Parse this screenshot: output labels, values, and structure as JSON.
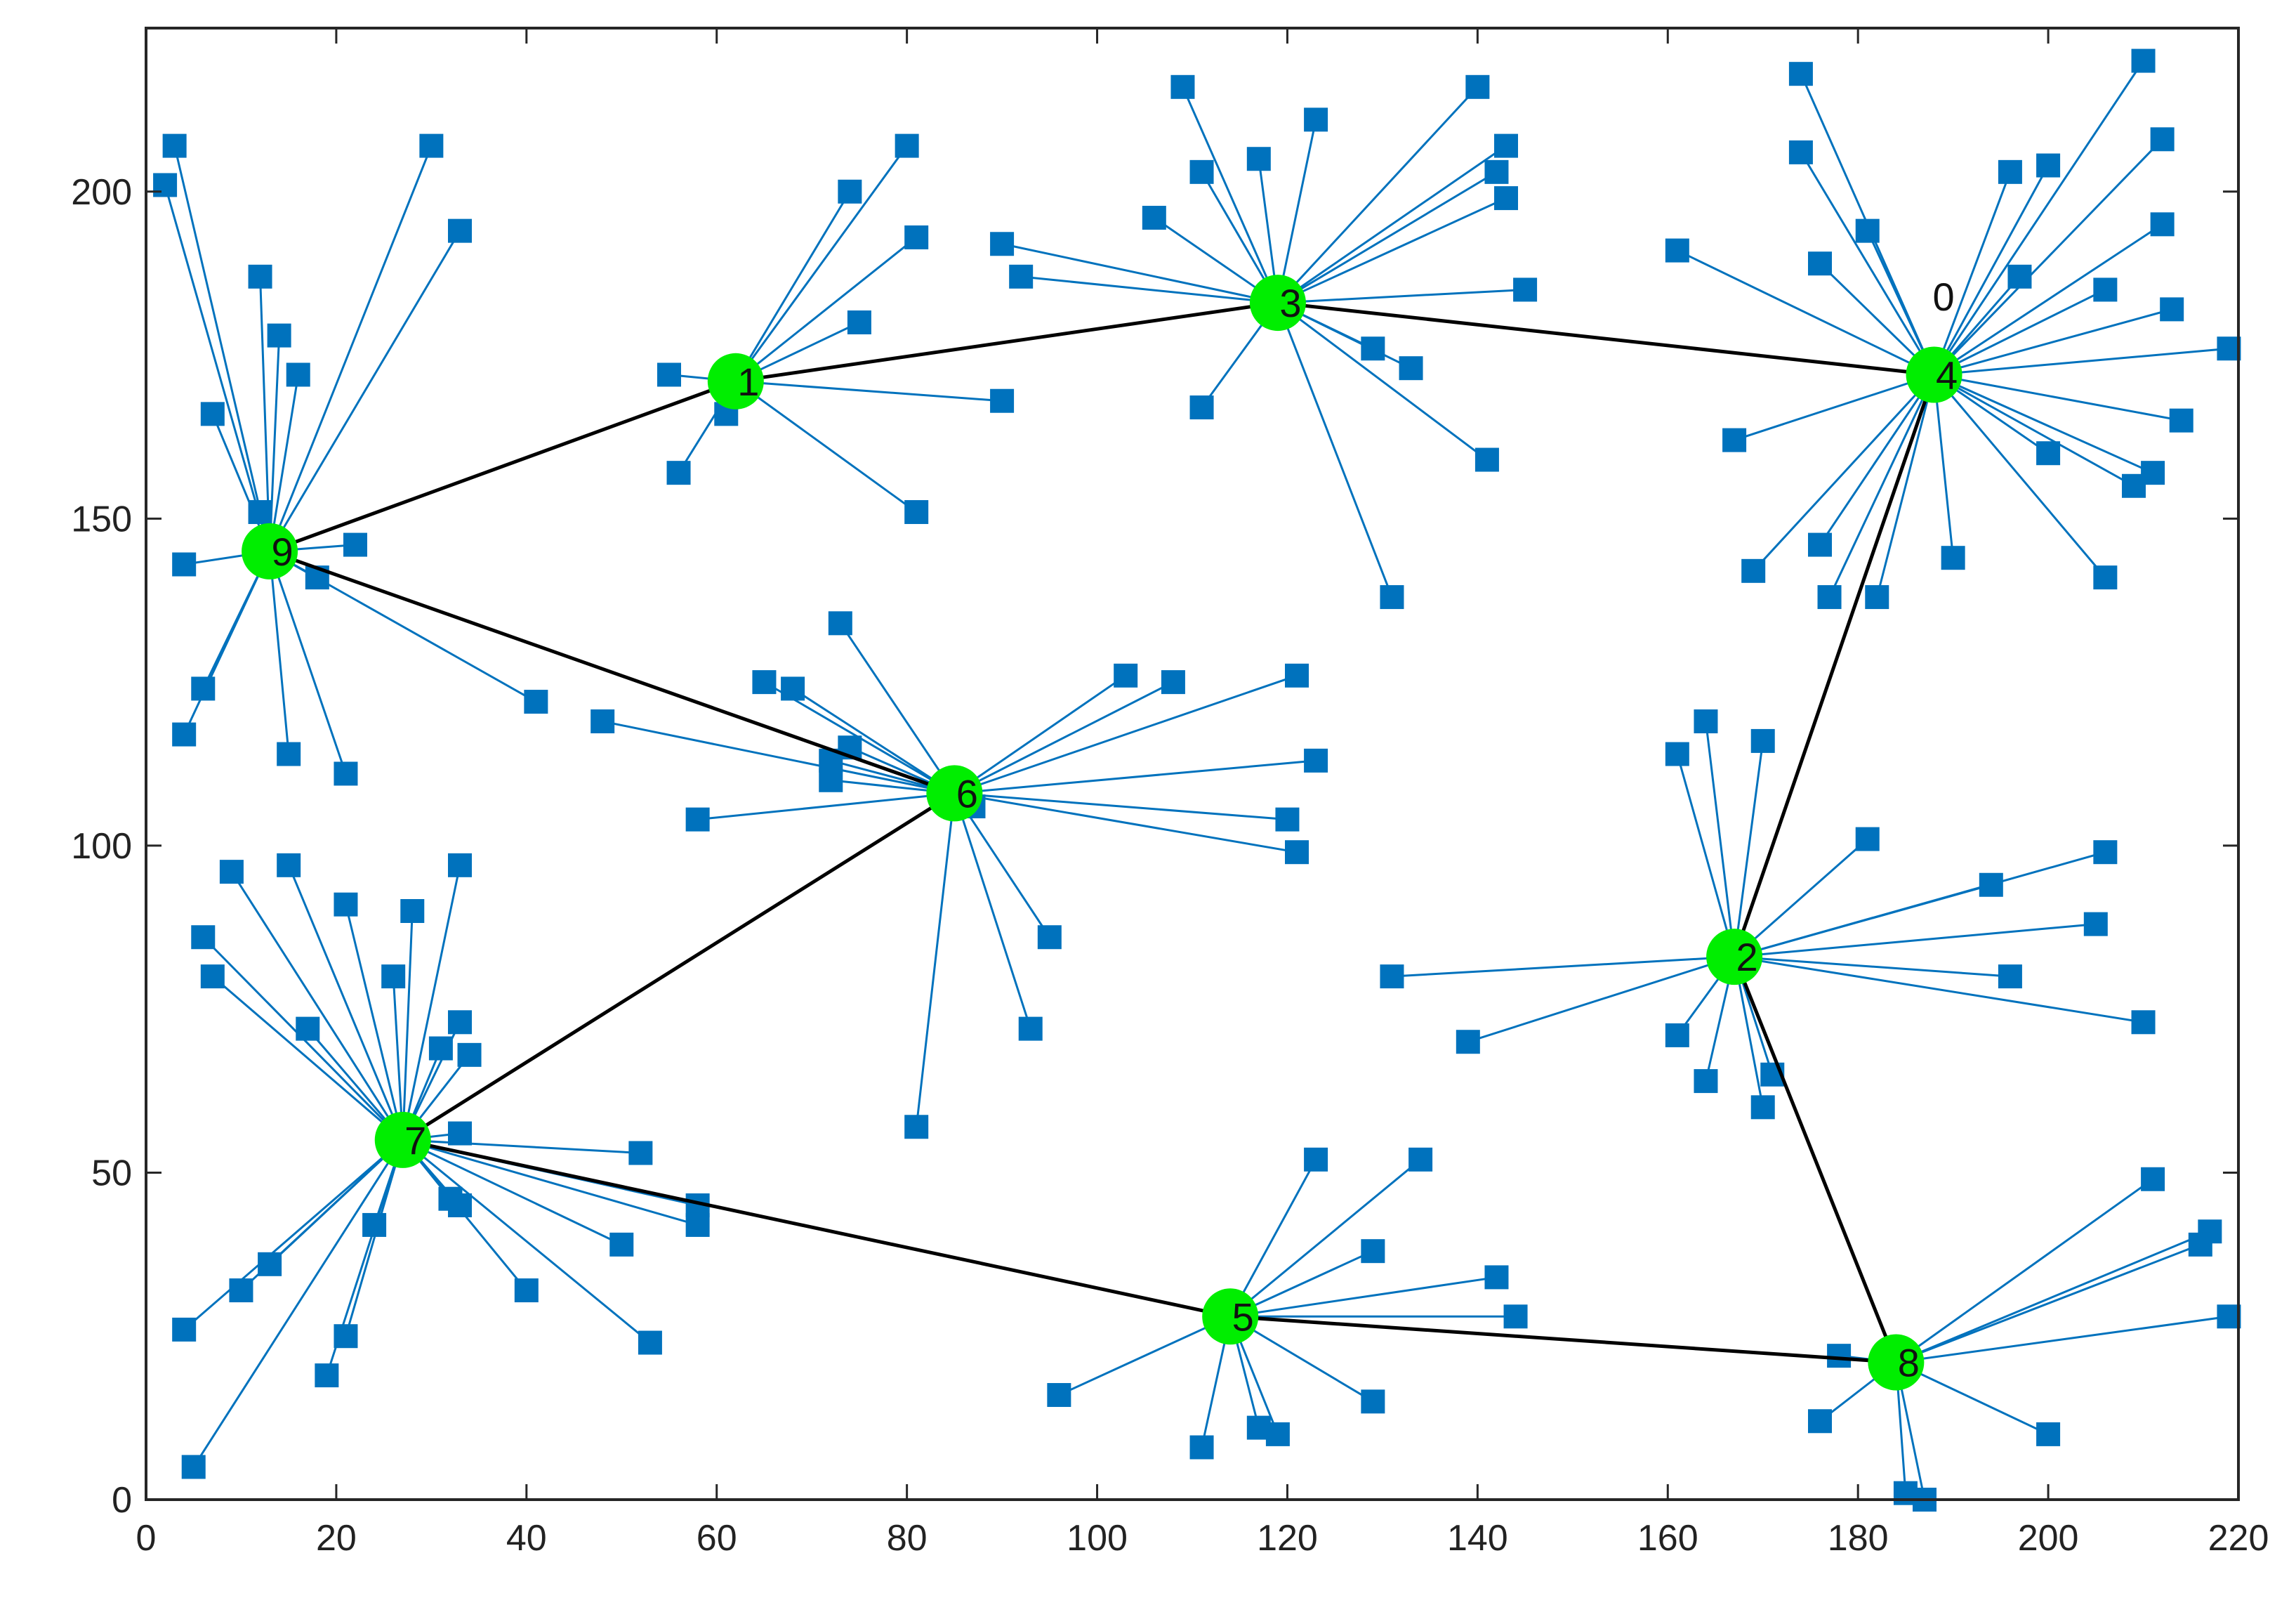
{
  "chart_data": {
    "type": "scatter",
    "xlim": [
      0,
      220
    ],
    "ylim": [
      0,
      225
    ],
    "x_ticks": [
      "0",
      "20",
      "40",
      "60",
      "80",
      "100",
      "120",
      "140",
      "160",
      "180",
      "200",
      "220"
    ],
    "y_ticks": [
      "0",
      "50",
      "100",
      "150",
      "200"
    ],
    "grid": false,
    "colors": {
      "node": "#0072BD",
      "spoke": "#0072BD",
      "hub": "#00EE00",
      "backbone": "#000000"
    },
    "annotation": {
      "text": "0",
      "x": 189,
      "y": 184
    },
    "hubs": [
      {
        "label": "1",
        "x": 62,
        "y": 171
      },
      {
        "label": "2",
        "x": 167,
        "y": 83
      },
      {
        "label": "3",
        "x": 119,
        "y": 183
      },
      {
        "label": "4",
        "x": 188,
        "y": 172
      },
      {
        "label": "5",
        "x": 114,
        "y": 28
      },
      {
        "label": "6",
        "x": 85,
        "y": 108
      },
      {
        "label": "7",
        "x": 27,
        "y": 55
      },
      {
        "label": "8",
        "x": 184,
        "y": 21
      },
      {
        "label": "9",
        "x": 13,
        "y": 145
      }
    ],
    "backbone": [
      [
        "9",
        "1"
      ],
      [
        "1",
        "3"
      ],
      [
        "3",
        "4"
      ],
      [
        "4",
        "2"
      ],
      [
        "2",
        "8"
      ],
      [
        "8",
        "5"
      ],
      [
        "5",
        "7"
      ],
      [
        "7",
        "6"
      ],
      [
        "6",
        "9"
      ]
    ],
    "clusters": {
      "1": [
        [
          74,
          200
        ],
        [
          80,
          207
        ],
        [
          81,
          193
        ],
        [
          75,
          180
        ],
        [
          90,
          168
        ],
        [
          81,
          151
        ],
        [
          56,
          157
        ],
        [
          61,
          166
        ],
        [
          55,
          172
        ]
      ],
      "2": [
        [
          161,
          114
        ],
        [
          164,
          119
        ],
        [
          170,
          116
        ],
        [
          181,
          101
        ],
        [
          206,
          99
        ],
        [
          194,
          94
        ],
        [
          205,
          88
        ],
        [
          196,
          80
        ],
        [
          210,
          73
        ],
        [
          171,
          65
        ],
        [
          170,
          60
        ],
        [
          164,
          64
        ],
        [
          161,
          71
        ],
        [
          139,
          70
        ],
        [
          131,
          80
        ]
      ],
      "3": [
        [
          109,
          216
        ],
        [
          111,
          203
        ],
        [
          117,
          205
        ],
        [
          123,
          211
        ],
        [
          106,
          196
        ],
        [
          90,
          192
        ],
        [
          92,
          187
        ],
        [
          140,
          216
        ],
        [
          143,
          207
        ],
        [
          142,
          203
        ],
        [
          143,
          199
        ],
        [
          145,
          185
        ],
        [
          129,
          176
        ],
        [
          133,
          173
        ],
        [
          141,
          159
        ],
        [
          131,
          138
        ],
        [
          111,
          167
        ]
      ],
      "4": [
        [
          174,
          218
        ],
        [
          174,
          206
        ],
        [
          181,
          194
        ],
        [
          176,
          189
        ],
        [
          161,
          191
        ],
        [
          210,
          220
        ],
        [
          212,
          208
        ],
        [
          212,
          195
        ],
        [
          196,
          203
        ],
        [
          200,
          204
        ],
        [
          197,
          187
        ],
        [
          206,
          185
        ],
        [
          213,
          182
        ],
        [
          219,
          176
        ],
        [
          214,
          165
        ],
        [
          200,
          160
        ],
        [
          211,
          157
        ],
        [
          209,
          155
        ],
        [
          206,
          141
        ],
        [
          190,
          144
        ],
        [
          182,
          138
        ],
        [
          177,
          138
        ],
        [
          176,
          146
        ],
        [
          169,
          142
        ],
        [
          167,
          162
        ]
      ],
      "5": [
        [
          123,
          52
        ],
        [
          134,
          52
        ],
        [
          129,
          38
        ],
        [
          142,
          34
        ],
        [
          144,
          28
        ],
        [
          129,
          15
        ],
        [
          119,
          10
        ],
        [
          117,
          11
        ],
        [
          111,
          8
        ],
        [
          96,
          16
        ]
      ],
      "6": [
        [
          73,
          134
        ],
        [
          65,
          125
        ],
        [
          68,
          124
        ],
        [
          74,
          115
        ],
        [
          72,
          113
        ],
        [
          72,
          110
        ],
        [
          103,
          126
        ],
        [
          108,
          125
        ],
        [
          121,
          126
        ],
        [
          123,
          113
        ],
        [
          120,
          104
        ],
        [
          121,
          99
        ],
        [
          87,
          106
        ],
        [
          95,
          86
        ],
        [
          93,
          72
        ],
        [
          81,
          57
        ],
        [
          58,
          104
        ],
        [
          48,
          119
        ]
      ],
      "7": [
        [
          9,
          96
        ],
        [
          15,
          97
        ],
        [
          21,
          91
        ],
        [
          26,
          80
        ],
        [
          28,
          90
        ],
        [
          33,
          97
        ],
        [
          33,
          73
        ],
        [
          34,
          68
        ],
        [
          31,
          69
        ],
        [
          17,
          72
        ],
        [
          7,
          80
        ],
        [
          6,
          86
        ],
        [
          33,
          56
        ],
        [
          52,
          53
        ],
        [
          58,
          45
        ],
        [
          58,
          42
        ],
        [
          50,
          39
        ],
        [
          40,
          32
        ],
        [
          53,
          24
        ],
        [
          32,
          46
        ],
        [
          33,
          45
        ],
        [
          24,
          42
        ],
        [
          21,
          25
        ],
        [
          19,
          19
        ],
        [
          13,
          36
        ],
        [
          10,
          32
        ],
        [
          4,
          26
        ],
        [
          5,
          5
        ]
      ],
      "8": [
        [
          211,
          49
        ],
        [
          217,
          41
        ],
        [
          216,
          39
        ],
        [
          219,
          28
        ],
        [
          200,
          10
        ],
        [
          178,
          22
        ],
        [
          176,
          12
        ],
        [
          185,
          1
        ],
        [
          187,
          0
        ]
      ],
      "9": [
        [
          3,
          207
        ],
        [
          2,
          201
        ],
        [
          12,
          187
        ],
        [
          14,
          178
        ],
        [
          16,
          172
        ],
        [
          7,
          166
        ],
        [
          12,
          151
        ],
        [
          30,
          207
        ],
        [
          33,
          194
        ],
        [
          22,
          146
        ],
        [
          18,
          141
        ],
        [
          41,
          122
        ],
        [
          4,
          143
        ],
        [
          6,
          124
        ],
        [
          4,
          117
        ],
        [
          15,
          114
        ],
        [
          21,
          111
        ]
      ]
    }
  }
}
